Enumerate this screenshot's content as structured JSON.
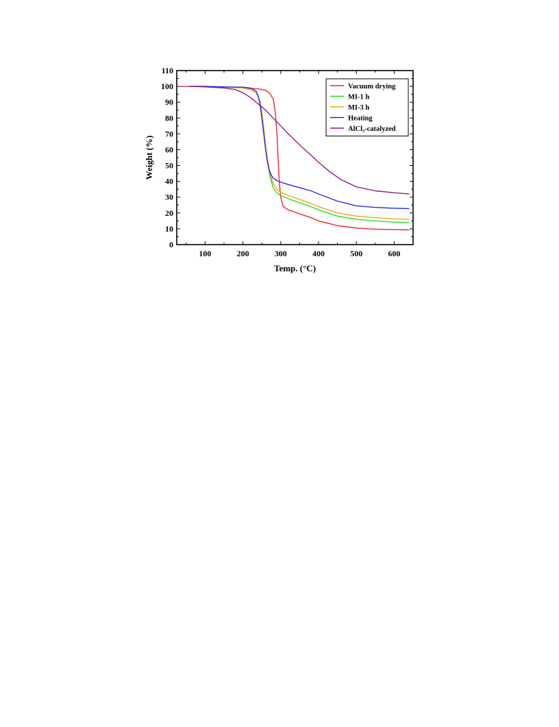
{
  "chart_data": {
    "type": "line",
    "xlabel": "Temp. (°C)",
    "ylabel": "Weight (%)",
    "xlim": [
      25,
      650
    ],
    "ylim": [
      0,
      110
    ],
    "xticks": [
      100,
      200,
      300,
      400,
      500,
      600
    ],
    "yticks": [
      0,
      10,
      20,
      30,
      40,
      50,
      60,
      70,
      80,
      90,
      100,
      110
    ],
    "grid": false,
    "legend_position": "top-right",
    "series": [
      {
        "name": "Vacuum drying",
        "color": "#e8242b",
        "x": [
          35,
          100,
          150,
          200,
          240,
          260,
          270,
          280,
          285,
          290,
          293,
          296,
          300,
          305,
          310,
          320,
          350,
          380,
          400,
          450,
          500,
          550,
          600,
          640
        ],
        "y": [
          100,
          100,
          99.6,
          99,
          98.5,
          97.5,
          96,
          92,
          85,
          70,
          55,
          40,
          30,
          25,
          23.5,
          22,
          19.5,
          17,
          15,
          12,
          10.5,
          9.8,
          9.5,
          9.3
        ]
      },
      {
        "name": "MI-1 h",
        "color": "#22dd22",
        "x": [
          60,
          100,
          150,
          200,
          220,
          235,
          245,
          250,
          255,
          260,
          265,
          270,
          275,
          280,
          290,
          300,
          320,
          350,
          380,
          400,
          450,
          500,
          550,
          600,
          640
        ],
        "y": [
          100,
          100,
          99.6,
          99,
          98,
          96,
          91,
          84,
          74,
          62,
          52,
          45,
          40,
          36,
          32.5,
          31,
          29,
          26.5,
          24,
          22,
          18,
          16,
          15,
          14.2,
          14
        ]
      },
      {
        "name": "MI-3 h",
        "color": "#f5a020",
        "x": [
          60,
          100,
          150,
          200,
          220,
          235,
          245,
          250,
          255,
          260,
          265,
          270,
          275,
          280,
          290,
          300,
          320,
          350,
          380,
          400,
          450,
          500,
          550,
          600,
          640
        ],
        "y": [
          100,
          100,
          99.5,
          99,
          98,
          96,
          91,
          84,
          74,
          63,
          54,
          47,
          42,
          38.5,
          35,
          33,
          31,
          28.5,
          26,
          24,
          20,
          18,
          17,
          16.3,
          16
        ]
      },
      {
        "name": "Heating",
        "color": "#2a2ae0",
        "x": [
          60,
          100,
          150,
          200,
          220,
          235,
          240,
          245,
          250,
          255,
          260,
          265,
          270,
          275,
          280,
          290,
          300,
          320,
          350,
          380,
          400,
          450,
          500,
          550,
          600,
          640
        ],
        "y": [
          100,
          100,
          99.7,
          99.5,
          99,
          97,
          94,
          89,
          80,
          70,
          60,
          52,
          47,
          44,
          42,
          40.5,
          39.5,
          38,
          36,
          34,
          32,
          27.5,
          24.5,
          23.5,
          23,
          22.8
        ]
      },
      {
        "name": "AlCl₃-catalyzed",
        "color": "#8a1a8a",
        "x": [
          60,
          100,
          150,
          180,
          200,
          220,
          240,
          260,
          280,
          300,
          320,
          350,
          380,
          400,
          430,
          460,
          500,
          550,
          600,
          640
        ],
        "y": [
          100,
          99.7,
          99,
          98,
          96,
          93,
          89,
          85,
          80,
          75,
          70,
          63,
          56.5,
          52,
          46,
          41,
          36.5,
          34,
          32.8,
          32
        ]
      }
    ]
  }
}
